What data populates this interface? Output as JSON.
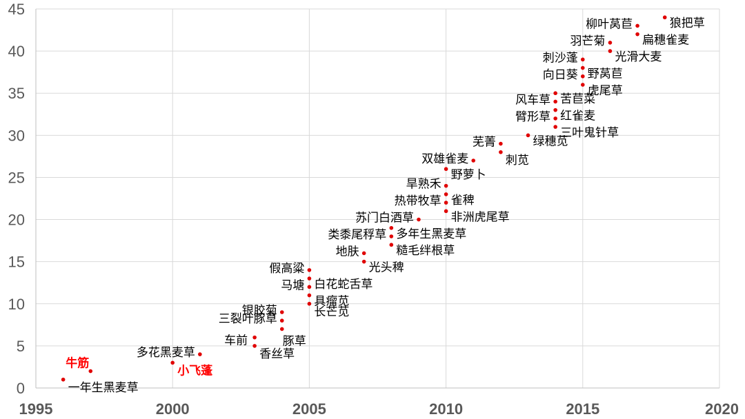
{
  "chart_data": {
    "type": "scatter",
    "title": "",
    "xlabel": "",
    "ylabel": "",
    "xlim": [
      1995,
      2020
    ],
    "ylim": [
      0,
      45
    ],
    "x_ticks": [
      1995,
      2000,
      2005,
      2010,
      2015,
      2020
    ],
    "y_ticks": [
      0,
      5,
      10,
      15,
      20,
      25,
      30,
      35,
      40,
      45
    ],
    "grid": "horizontal",
    "marker_color": "#e00000",
    "highlight_color": "#ff0000",
    "points": [
      {
        "x": 1996,
        "y": 1,
        "label": "一年生黑麦草",
        "pos": "right-below"
      },
      {
        "x": 1997,
        "y": 2,
        "label": "牛筋",
        "pos": "left-above",
        "highlight": true
      },
      {
        "x": 2000,
        "y": 3,
        "label": "小飞蓬",
        "pos": "right-below",
        "highlight": true
      },
      {
        "x": 2001,
        "y": 4,
        "label": "多花黑麦草",
        "pos": "left"
      },
      {
        "x": 2003,
        "y": 5,
        "label": "香丝草",
        "pos": "right-below"
      },
      {
        "x": 2003,
        "y": 6,
        "label": "车前",
        "pos": "left-below"
      },
      {
        "x": 2004,
        "y": 7,
        "label": "豚草",
        "pos": "right-below2"
      },
      {
        "x": 2004,
        "y": 8,
        "label": "三裂叶豚草",
        "pos": "left"
      },
      {
        "x": 2004,
        "y": 9,
        "label": "银胶菊",
        "pos": "left"
      },
      {
        "x": 2005,
        "y": 10,
        "label": "长芒苋",
        "pos": "right-below"
      },
      {
        "x": 2005,
        "y": 11,
        "label": "具瘤苋",
        "pos": "right"
      },
      {
        "x": 2005,
        "y": 12,
        "label": "马塘",
        "pos": "left"
      },
      {
        "x": 2005,
        "y": 13,
        "label": "白花蛇舌草",
        "pos": "right"
      },
      {
        "x": 2005,
        "y": 14,
        "label": "假高粱",
        "pos": "left"
      },
      {
        "x": 2007,
        "y": 15,
        "label": "光头稗",
        "pos": "right"
      },
      {
        "x": 2007,
        "y": 16,
        "label": "地肤",
        "pos": "left"
      },
      {
        "x": 2008,
        "y": 17,
        "label": "糙毛绊根草",
        "pos": "right"
      },
      {
        "x": 2008,
        "y": 18,
        "label": "类黍尾稃草",
        "pos": "left"
      },
      {
        "x": 2008,
        "y": 19,
        "label": "多年生黑麦草",
        "pos": "right"
      },
      {
        "x": 2009,
        "y": 20,
        "label": "苏门白酒草",
        "pos": "left"
      },
      {
        "x": 2010,
        "y": 21,
        "label": "非洲虎尾草",
        "pos": "right"
      },
      {
        "x": 2010,
        "y": 22,
        "label": "热带牧草",
        "pos": "left"
      },
      {
        "x": 2010,
        "y": 23,
        "label": "雀稗",
        "pos": "right"
      },
      {
        "x": 2010,
        "y": 24,
        "label": "旱熟禾",
        "pos": "left"
      },
      {
        "x": 2010,
        "y": 26,
        "label": "野萝卜",
        "pos": "right"
      },
      {
        "x": 2011,
        "y": 27,
        "label": "双雄雀麦",
        "pos": "left"
      },
      {
        "x": 2012,
        "y": 28,
        "label": "刺苋",
        "pos": "right-below"
      },
      {
        "x": 2012,
        "y": 29,
        "label": "芜菁",
        "pos": "left"
      },
      {
        "x": 2013,
        "y": 30,
        "label": "绿穗苋",
        "pos": "right"
      },
      {
        "x": 2014,
        "y": 31,
        "label": "三叶鬼针草",
        "pos": "right"
      },
      {
        "x": 2014,
        "y": 32,
        "label": "臂形草",
        "pos": "left"
      },
      {
        "x": 2014,
        "y": 33,
        "label": "红雀麦",
        "pos": "right"
      },
      {
        "x": 2014,
        "y": 34,
        "label": "风车草",
        "pos": "left"
      },
      {
        "x": 2014,
        "y": 35,
        "label": "苦苣菜",
        "pos": "right"
      },
      {
        "x": 2015,
        "y": 36,
        "label": "虎尾草",
        "pos": "right"
      },
      {
        "x": 2015,
        "y": 37,
        "label": "向日葵",
        "pos": "left"
      },
      {
        "x": 2015,
        "y": 38,
        "label": "野莴苣",
        "pos": "right"
      },
      {
        "x": 2015,
        "y": 39,
        "label": "刺沙蓬",
        "pos": "left"
      },
      {
        "x": 2016,
        "y": 40,
        "label": "光滑大麦",
        "pos": "right"
      },
      {
        "x": 2016,
        "y": 41,
        "label": "羽芒菊",
        "pos": "left"
      },
      {
        "x": 2017,
        "y": 42,
        "label": "扁穗雀麦",
        "pos": "right"
      },
      {
        "x": 2017,
        "y": 43,
        "label": "柳叶莴苣",
        "pos": "left"
      },
      {
        "x": 2018,
        "y": 44,
        "label": "狼把草",
        "pos": "right"
      }
    ]
  }
}
